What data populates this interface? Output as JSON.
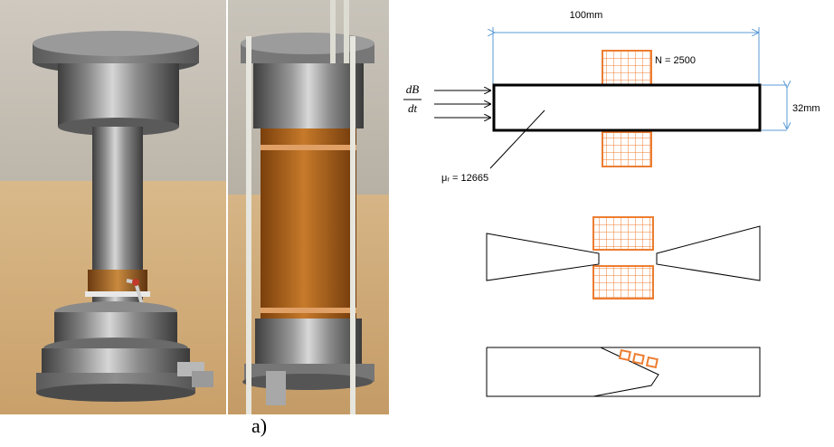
{
  "caption": "a)",
  "diagram": {
    "length_label": "100mm",
    "turns_label": "N = 2500",
    "height_label": "32mm",
    "permeability_label": "μᵣ = 12665",
    "flux_numerator": "dB",
    "flux_denominator": "dt"
  },
  "colors": {
    "coil": "#ED7D31",
    "dimension_line": "#5B9BD5",
    "outline": "#000000"
  }
}
